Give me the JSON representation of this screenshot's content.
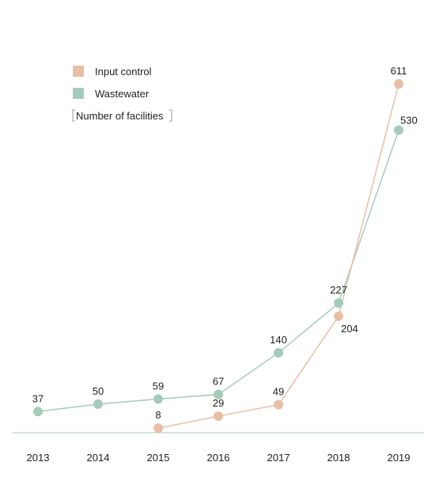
{
  "chart_data": {
    "type": "line",
    "categories": [
      "2013",
      "2014",
      "2015",
      "2016",
      "2017",
      "2018",
      "2019"
    ],
    "series": [
      {
        "name": "Wastewater",
        "color": "#a6cbbd",
        "values": [
          37,
          50,
          59,
          67,
          140,
          227,
          530
        ]
      },
      {
        "name": "Input control",
        "color": "#e8bfa5",
        "values": [
          null,
          null,
          8,
          29,
          49,
          204,
          611
        ]
      }
    ],
    "unit_label": "Number of facilities",
    "ylim": [
      0,
      611
    ],
    "grid": false,
    "legend_position": "top-left",
    "axis_color": "#a6cbbd"
  }
}
